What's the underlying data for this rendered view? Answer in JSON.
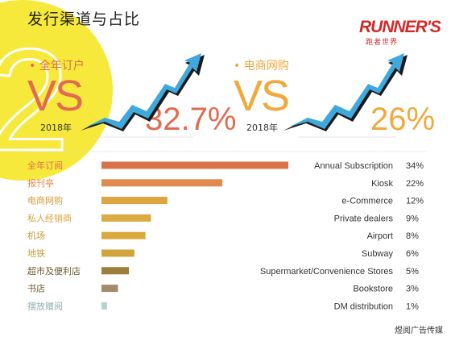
{
  "title": "发行渠道与占比",
  "logo": {
    "text": "RUNNER'S",
    "sub": "跑者世界"
  },
  "decor_digit": "2",
  "panels": [
    {
      "label": "全年订户",
      "vs": "VS",
      "year": "2018年",
      "value": "32.7%",
      "color": "#e16b50"
    },
    {
      "label": "电商网购",
      "vs": "VS",
      "year": "2018年",
      "value": "26%",
      "color": "#f0a93c"
    }
  ],
  "chart_data": {
    "type": "bar",
    "orientation": "horizontal",
    "categories_cn": [
      "全年订阅",
      "报刊亭",
      "电商网购",
      "私人经销商",
      "机场",
      "地铁",
      "超市及便利店",
      "书店",
      "摆放赠阅"
    ],
    "categories_en": [
      "Annual Subscription",
      "Kiosk",
      "e-Commerce",
      "Private dealers",
      "Airport",
      "Subway",
      "Supermarket/Convenience Stores",
      "Bookstore",
      "DM distribution"
    ],
    "values": [
      34,
      22,
      12,
      9,
      8,
      6,
      5,
      3,
      1
    ],
    "value_labels": [
      "34%",
      "22%",
      "12%",
      "9%",
      "8%",
      "6%",
      "5%",
      "3%",
      "1%"
    ],
    "colors": [
      "#d9714a",
      "#e08a4d",
      "#dfa442",
      "#dcaa43",
      "#d9a83f",
      "#d3a43d",
      "#9c7d3b",
      "#a48c6a",
      "#b8d0cf"
    ],
    "label_colors": [
      "#d9714a",
      "#e08a4d",
      "#d99a3c",
      "#d9a43e",
      "#c49a3b",
      "#c49a3b",
      "#6d5a2f",
      "#6d5a2f",
      "#8fb0b0"
    ]
  },
  "footer": "煜阅广告传媒"
}
